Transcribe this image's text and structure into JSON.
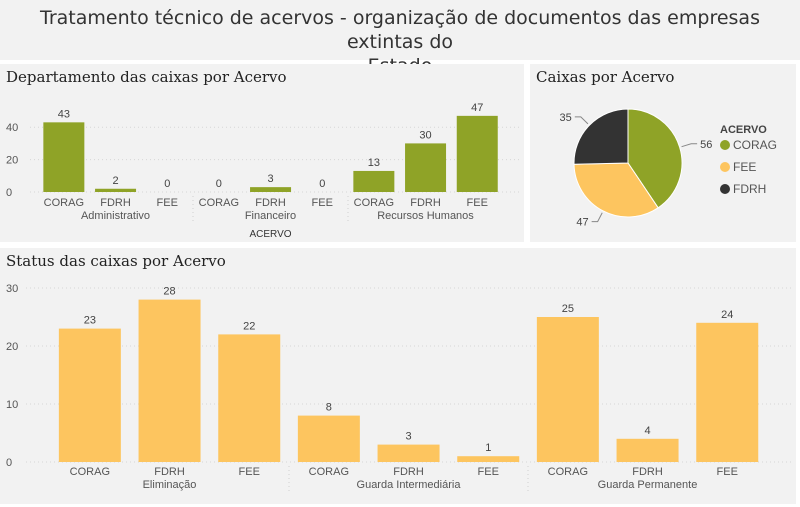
{
  "page_title_line1": "Tratamento técnico de acervos - organização de documentos das empresas extintas do",
  "page_title_line2": "Estado",
  "colors": {
    "CORAG": "#8fa327",
    "FEE": "#fdc55f",
    "FDRH": "#333333",
    "bar_dept": "#8fa327",
    "bar_status": "#fdc55f"
  },
  "chart_data": [
    {
      "type": "bar",
      "title": "Departamento das caixas por Acervo",
      "xlabel": "ACERVO",
      "ylabel": "",
      "ylim": [
        0,
        50
      ],
      "yticks": [
        0,
        20,
        40
      ],
      "groups": [
        {
          "name": "Administrativo",
          "categories": [
            "CORAG",
            "FDRH",
            "FEE"
          ],
          "values": [
            43,
            2,
            0
          ]
        },
        {
          "name": "Financeiro",
          "categories": [
            "CORAG",
            "FDRH",
            "FEE"
          ],
          "values": [
            0,
            3,
            0
          ]
        },
        {
          "name": "Recursos Humanos",
          "categories": [
            "CORAG",
            "FDRH",
            "FEE"
          ],
          "values": [
            13,
            30,
            47
          ]
        }
      ],
      "grid": true
    },
    {
      "type": "pie",
      "title": "Caixas por Acervo",
      "legend_title": "ACERVO",
      "legend_position": "right",
      "slices": [
        {
          "label": "CORAG",
          "value": 56
        },
        {
          "label": "FEE",
          "value": 47
        },
        {
          "label": "FDRH",
          "value": 35
        }
      ]
    },
    {
      "type": "bar",
      "title": "Status das caixas por Acervo",
      "xlabel": "",
      "ylabel": "",
      "ylim": [
        0,
        30
      ],
      "yticks": [
        0,
        10,
        20,
        30
      ],
      "groups": [
        {
          "name": "Eliminação",
          "categories": [
            "CORAG",
            "FDRH",
            "FEE"
          ],
          "values": [
            23,
            28,
            22
          ]
        },
        {
          "name": "Guarda Intermediária",
          "categories": [
            "CORAG",
            "FDRH",
            "FEE"
          ],
          "values": [
            8,
            3,
            1
          ]
        },
        {
          "name": "Guarda Permanente",
          "categories": [
            "CORAG",
            "FDRH",
            "FEE"
          ],
          "values": [
            25,
            4,
            24
          ]
        }
      ],
      "grid": true
    }
  ]
}
